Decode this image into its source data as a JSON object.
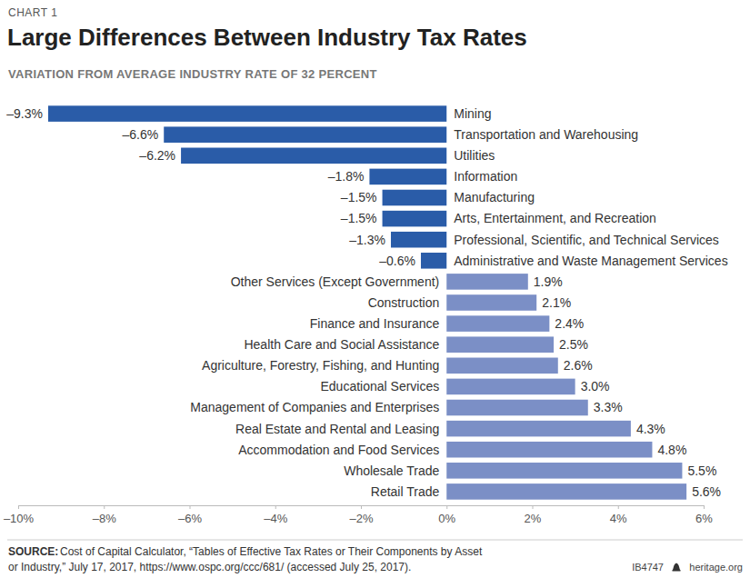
{
  "chart_data": {
    "type": "bar",
    "orientation": "horizontal",
    "kicker": "CHART 1",
    "title": "Large Differences Between Industry Tax Rates",
    "subtitle": "VARIATION FROM AVERAGE INDUSTRY RATE OF 32 PERCENT",
    "categories": [
      "Mining",
      "Transportation and Warehousing",
      "Utilities",
      "Information",
      "Manufacturing",
      "Arts, Entertainment, and Recreation",
      "Professional, Scientific, and Technical Services",
      "Administrative and Waste Management Services",
      "Other Services (Except Government)",
      "Construction",
      "Finance and Insurance",
      "Health Care and Social Assistance",
      "Agriculture, Forestry, Fishing, and Hunting",
      "Educational Services",
      "Management of Companies and Enterprises",
      "Real Estate and Rental and Leasing",
      "Accommodation and Food Services",
      "Wholesale Trade",
      "Retail Trade"
    ],
    "values": [
      -9.3,
      -6.6,
      -6.2,
      -1.8,
      -1.5,
      -1.5,
      -1.3,
      -0.6,
      1.9,
      2.1,
      2.4,
      2.5,
      2.6,
      3.0,
      3.3,
      4.3,
      4.8,
      5.5,
      5.6
    ],
    "value_labels": [
      "–9.3%",
      "–6.6%",
      "–6.2%",
      "–1.8%",
      "–1.5%",
      "–1.5%",
      "–1.3%",
      "–0.6%",
      "1.9%",
      "2.1%",
      "2.4%",
      "2.5%",
      "2.6%",
      "3.0%",
      "3.3%",
      "4.3%",
      "4.8%",
      "5.5%",
      "5.6%"
    ],
    "colors": [
      "#2a5ca8",
      "#2a5ca8",
      "#2a5ca8",
      "#2a5ca8",
      "#2a5ca8",
      "#2a5ca8",
      "#2a5ca8",
      "#2a5ca8",
      "#7b8fc6",
      "#7b8fc6",
      "#7b8fc6",
      "#7b8fc6",
      "#7b8fc6",
      "#7b8fc6",
      "#7b8fc6",
      "#7b8fc6",
      "#7b8fc6",
      "#7b8fc6",
      "#7b8fc6"
    ],
    "data_labels": true,
    "grid": false,
    "xlim": [
      -10,
      6
    ],
    "xticks": [
      {
        "value": -10,
        "label": "–10%"
      },
      {
        "value": -8,
        "label": "–8%"
      },
      {
        "value": -6,
        "label": "–6%"
      },
      {
        "value": -4,
        "label": "–4%"
      },
      {
        "value": -2,
        "label": "–2%"
      },
      {
        "value": 0,
        "label": "0%"
      },
      {
        "value": 2,
        "label": "2%"
      },
      {
        "value": 4,
        "label": "4%"
      },
      {
        "value": 6,
        "label": "6%"
      }
    ],
    "source_label": "SOURCE:",
    "source": [
      "Cost of Capital Calculator, “Tables of Effective Tax Rates or Their Components by Asset",
      "or Industry,” July 17, 2017, https://www.ospc.org/ccc/681/ (accessed July 25, 2017)."
    ],
    "footer_id": "IB4747",
    "footer_site": "heritage.org"
  }
}
